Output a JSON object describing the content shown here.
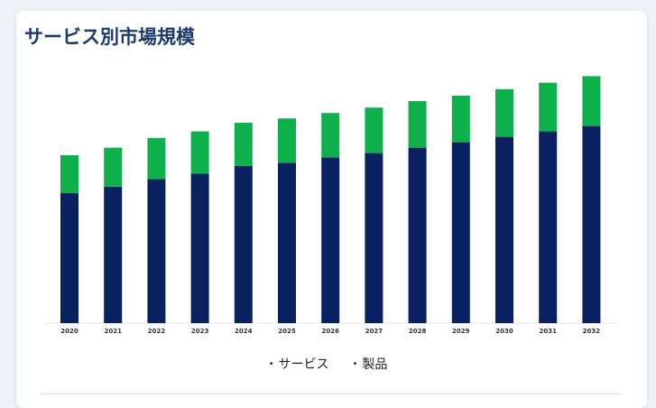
{
  "title": "サービス別市場規模",
  "legend": [
    {
      "label": "サービス",
      "bullet": "•"
    },
    {
      "label": "製品",
      "bullet": "•"
    }
  ],
  "colors": {
    "series_bottom": "#0a2161",
    "series_top": "#0db04b",
    "heading": "#1c3a6e"
  },
  "chart_data": {
    "type": "bar",
    "stacked": true,
    "title": "サービス別市場規模",
    "categories": [
      "2020",
      "2021",
      "2022",
      "2023",
      "2024",
      "2025",
      "2026",
      "2027",
      "2028",
      "2029",
      "2030",
      "2031",
      "2032"
    ],
    "series": [
      {
        "values": [
          120,
          126,
          133,
          138,
          145,
          148,
          153,
          157,
          162,
          167,
          172,
          177,
          182
        ]
      },
      {
        "values": [
          35,
          36,
          38,
          39,
          40,
          41,
          41,
          42,
          43,
          43,
          44,
          45,
          46
        ]
      }
    ],
    "ylim": [
      0,
      250
    ],
    "grid": false,
    "legend_position": "bottom"
  }
}
